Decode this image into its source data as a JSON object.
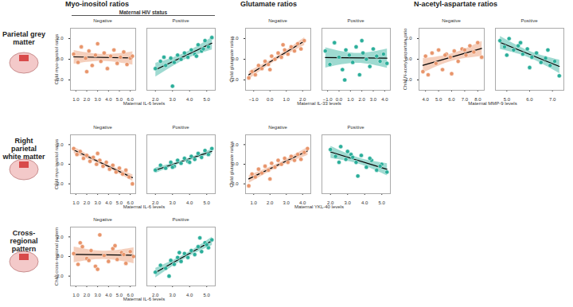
{
  "column_titles": [
    "Myo-inositol ratios",
    "Glutamate ratios",
    "N-acetyl-aspartate ratios"
  ],
  "row_titles": [
    "Parietal grey matter",
    "Right parietal white matter",
    "Cross-regional pattern"
  ],
  "legend_title": "Maternal HIV status",
  "chart_data": [
    {
      "type": "scatter",
      "row": "Parietal grey matter",
      "column": "Myo-inositol ratios",
      "x_label": "Maternal IL-6 levels",
      "y_label": "Child myo-inositol ratios",
      "ylim": [
        -3,
        3
      ],
      "yticks": [
        -2,
        0,
        2
      ],
      "series": [
        {
          "name": "Negative",
          "color": "#E8956B",
          "xlim": [
            0.5,
            6.5
          ],
          "xticks": [
            1,
            2,
            3,
            4,
            5,
            6
          ],
          "x": [
            0.8,
            1.2,
            1.5,
            1.9,
            2.2,
            2.5,
            2.8,
            3.0,
            3.3,
            3.6,
            3.9,
            4.2,
            4.5,
            4.8,
            5.1,
            5.4,
            5.7,
            6.0,
            6.2,
            2.0
          ],
          "values": [
            0.5,
            -0.3,
            1.2,
            0.1,
            0.8,
            -0.6,
            0.4,
            1.5,
            -0.2,
            0.6,
            -0.9,
            0.3,
            0.9,
            -0.4,
            0.2,
            0.7,
            -0.5,
            0.1,
            0.3,
            -1.2
          ]
        },
        {
          "name": "Positive",
          "color": "#2BAE9A",
          "xlim": [
            1.5,
            5.5
          ],
          "xticks": [
            2,
            3,
            4,
            5
          ],
          "x": [
            2.0,
            2.3,
            2.6,
            2.9,
            3.1,
            3.3,
            3.5,
            3.7,
            3.9,
            4.1,
            4.3,
            4.5,
            4.7,
            4.9,
            5.1,
            5.3,
            3.0,
            4.4,
            4.8,
            2.5
          ],
          "values": [
            -0.9,
            -0.2,
            -0.6,
            0.1,
            -0.3,
            0.4,
            0.0,
            0.6,
            0.2,
            0.9,
            0.5,
            1.4,
            0.8,
            1.8,
            1.2,
            2.1,
            -2.6,
            0.3,
            1.0,
            0.2
          ]
        }
      ]
    },
    {
      "type": "scatter",
      "row": "Parietal grey matter",
      "column": "Glutamate ratios",
      "x_label": "Maternal IL-33 levels",
      "y_label": "Child glutamate ratios",
      "ylim": [
        -3,
        3
      ],
      "yticks": [
        -2,
        0,
        2
      ],
      "series": [
        {
          "name": "Negative",
          "color": "#E8956B",
          "xlim": [
            -1.5,
            2.5
          ],
          "xticks": [
            -1,
            0,
            1,
            2
          ],
          "x": [
            -1.3,
            -1.1,
            -0.9,
            -0.7,
            -0.5,
            -0.3,
            -0.1,
            0.1,
            0.3,
            0.5,
            0.7,
            0.9,
            1.1,
            1.3,
            1.5,
            1.7,
            1.9,
            2.1,
            0.0,
            0.8
          ],
          "values": [
            -1.8,
            -1.2,
            -1.5,
            -0.6,
            -0.9,
            -0.2,
            -0.5,
            0.3,
            0.0,
            0.6,
            0.2,
            0.9,
            0.5,
            1.2,
            0.8,
            1.5,
            1.0,
            1.8,
            -1.0,
            1.4
          ]
        },
        {
          "name": "Positive",
          "color": "#2BAE9A",
          "xlim": [
            -1.5,
            4.5
          ],
          "xticks": [
            -1,
            0,
            1,
            2,
            3,
            4
          ],
          "x": [
            -1.2,
            -0.8,
            -0.4,
            0.0,
            0.3,
            0.6,
            0.9,
            1.2,
            1.5,
            1.8,
            2.1,
            2.4,
            2.7,
            3.0,
            3.3,
            3.6,
            3.9,
            4.2,
            0.5,
            2.0
          ],
          "values": [
            0.8,
            -0.5,
            1.6,
            0.2,
            -1.0,
            0.9,
            0.4,
            -0.3,
            1.2,
            -1.5,
            0.6,
            0.0,
            -0.7,
            1.0,
            0.3,
            -0.2,
            0.5,
            -0.4,
            -2.0,
            1.8
          ]
        }
      ]
    },
    {
      "type": "scatter",
      "row": "Parietal grey matter",
      "column": "N-acetyl-aspartate ratios",
      "x_label": "Maternal MMP-9 levels",
      "y_label": "Child N-acetyl-aspartate ratio",
      "ylim": [
        -3,
        3
      ],
      "yticks": [
        -2,
        0,
        2
      ],
      "series": [
        {
          "name": "Negative",
          "color": "#E8956B",
          "xlim": [
            3.5,
            8.5
          ],
          "xticks": [
            4,
            5,
            6,
            7,
            8
          ],
          "x": [
            3.8,
            4.0,
            4.2,
            4.5,
            4.8,
            5.0,
            5.3,
            5.6,
            5.9,
            6.2,
            6.5,
            6.8,
            7.1,
            7.4,
            7.7,
            8.0,
            8.3,
            6.0,
            7.0,
            5.5
          ],
          "values": [
            -1.2,
            0.3,
            -1.5,
            0.6,
            -0.4,
            0.9,
            -1.0,
            0.5,
            0.2,
            0.8,
            -0.2,
            1.0,
            0.4,
            1.3,
            0.7,
            1.6,
            0.2,
            -1.4,
            0.9,
            0.4
          ]
        },
        {
          "name": "Positive",
          "color": "#2BAE9A",
          "xlim": [
            4.5,
            7.5
          ],
          "xticks": [
            5,
            6,
            7
          ],
          "x": [
            4.7,
            4.9,
            5.1,
            5.3,
            5.5,
            5.7,
            5.9,
            6.1,
            6.3,
            6.5,
            6.7,
            6.9,
            7.1,
            7.3,
            5.0,
            6.0,
            6.8,
            5.6
          ],
          "values": [
            1.8,
            1.2,
            2.0,
            0.9,
            1.3,
            0.5,
            1.0,
            0.2,
            0.6,
            -0.3,
            0.1,
            -0.6,
            -0.2,
            -1.6,
            0.4,
            -0.8,
            0.9,
            1.6
          ]
        }
      ]
    },
    {
      "type": "scatter",
      "row": "Right parietal white matter",
      "column": "Myo-inositol ratios",
      "x_label": "Maternal IL-6 levels",
      "y_label": "Child myo-inositol ratios",
      "ylim": [
        -3,
        3
      ],
      "yticks": [
        -2,
        0,
        2
      ],
      "series": [
        {
          "name": "Negative",
          "color": "#E8956B",
          "xlim": [
            0.5,
            6.5
          ],
          "xticks": [
            1,
            2,
            3,
            4,
            5,
            6
          ],
          "x": [
            0.8,
            1.1,
            1.4,
            1.7,
            2.0,
            2.3,
            2.6,
            2.9,
            3.2,
            3.5,
            3.8,
            4.1,
            4.4,
            4.7,
            5.0,
            5.3,
            5.6,
            5.9,
            6.2,
            3.0
          ],
          "values": [
            1.6,
            1.0,
            1.3,
            0.6,
            0.9,
            0.3,
            0.7,
            0.0,
            0.4,
            -0.2,
            0.2,
            -0.5,
            -0.1,
            -0.8,
            -0.4,
            -1.0,
            -0.6,
            -1.3,
            -2.0,
            1.1
          ]
        },
        {
          "name": "Positive",
          "color": "#2BAE9A",
          "xlim": [
            1.5,
            5.5
          ],
          "xticks": [
            2,
            3,
            4,
            5
          ],
          "x": [
            2.0,
            2.3,
            2.6,
            2.9,
            3.1,
            3.3,
            3.5,
            3.7,
            3.9,
            4.1,
            4.3,
            4.5,
            4.7,
            4.9,
            5.1,
            5.3,
            3.0,
            4.0
          ],
          "values": [
            -0.6,
            -0.1,
            -0.4,
            0.2,
            -0.2,
            0.4,
            0.1,
            0.6,
            0.3,
            0.8,
            0.5,
            1.1,
            0.7,
            1.4,
            1.0,
            1.6,
            -0.3,
            0.2
          ]
        }
      ]
    },
    {
      "type": "scatter",
      "row": "Right parietal white matter",
      "column": "Glutamate ratios",
      "x_label": "Maternal YKL-40 levels",
      "y_label": "Child glutamate ratios",
      "ylim": [
        -3,
        3
      ],
      "yticks": [
        -2,
        0,
        2
      ],
      "series": [
        {
          "name": "Negative",
          "color": "#E8956B",
          "xlim": [
            0.5,
            4.5
          ],
          "xticks": [
            1,
            2,
            3,
            4
          ],
          "x": [
            0.7,
            0.9,
            1.1,
            1.3,
            1.5,
            1.7,
            1.9,
            2.1,
            2.3,
            2.5,
            2.7,
            2.9,
            3.1,
            3.3,
            3.5,
            3.7,
            3.9,
            4.1,
            4.3,
            2.0
          ],
          "values": [
            -2.2,
            -1.0,
            -1.3,
            -0.5,
            -0.9,
            -0.2,
            -0.6,
            0.1,
            -0.3,
            0.4,
            0.0,
            0.6,
            0.2,
            0.8,
            0.4,
            1.0,
            0.5,
            1.2,
            1.6,
            -1.5
          ]
        },
        {
          "name": "Positive",
          "color": "#2BAE9A",
          "xlim": [
            1.5,
            5.5
          ],
          "xticks": [
            2,
            3,
            4,
            5
          ],
          "x": [
            2.0,
            2.3,
            2.6,
            2.9,
            3.2,
            3.5,
            3.8,
            4.1,
            4.4,
            4.7,
            5.0,
            5.3,
            2.5,
            3.0,
            3.6,
            4.3,
            4.9,
            3.3
          ],
          "values": [
            1.5,
            0.8,
            1.8,
            0.5,
            1.0,
            0.2,
            0.9,
            -0.3,
            0.4,
            -0.6,
            0.0,
            -0.8,
            0.2,
            1.3,
            -1.2,
            0.6,
            -0.2,
            0.7
          ]
        }
      ]
    },
    {
      "type": "scatter",
      "row": "Cross-regional pattern",
      "column": "Myo-inositol ratios",
      "x_label": "Maternal IL-6 levels",
      "y_label": "Child cross-regional pattern",
      "ylim": [
        -3,
        3
      ],
      "yticks": [
        -2,
        0,
        2
      ],
      "series": [
        {
          "name": "Negative",
          "color": "#E8956B",
          "xlim": [
            0.5,
            6.5
          ],
          "xticks": [
            1,
            2,
            3,
            4,
            5,
            6
          ],
          "x": [
            0.8,
            1.2,
            1.6,
            2.0,
            2.4,
            2.8,
            3.2,
            3.6,
            4.0,
            4.4,
            4.8,
            5.2,
            5.6,
            6.0,
            6.3,
            1.4,
            3.0,
            4.6,
            5.4,
            2.2
          ],
          "values": [
            0.3,
            -0.8,
            1.0,
            -0.2,
            0.6,
            -1.0,
            2.2,
            0.1,
            -0.5,
            0.8,
            -0.3,
            0.4,
            -0.7,
            0.5,
            0.0,
            1.4,
            -1.3,
            1.1,
            0.2,
            -0.4
          ]
        },
        {
          "name": "Positive",
          "color": "#2BAE9A",
          "xlim": [
            1.5,
            5.5
          ],
          "xticks": [
            2,
            3,
            4,
            5
          ],
          "x": [
            2.0,
            2.3,
            2.6,
            2.9,
            3.1,
            3.3,
            3.5,
            3.7,
            3.9,
            4.1,
            4.3,
            4.5,
            4.7,
            4.9,
            5.1,
            5.3,
            2.8,
            4.6,
            3.4,
            5.0
          ],
          "values": [
            -1.6,
            -0.9,
            -1.2,
            -0.4,
            -0.8,
            -0.1,
            -0.5,
            0.3,
            -0.1,
            0.6,
            0.2,
            1.0,
            0.5,
            1.4,
            0.9,
            1.7,
            -2.0,
            1.9,
            0.4,
            1.2
          ]
        }
      ]
    }
  ]
}
